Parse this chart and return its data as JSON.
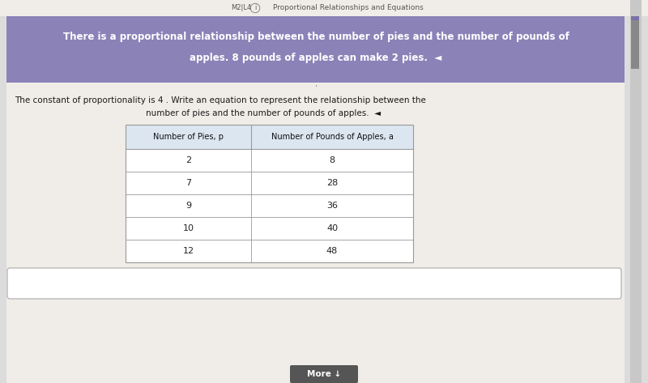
{
  "bg_color": "#dcdcdc",
  "top_bar_color": "#f0ede8",
  "header_bar_color": "#8b82b8",
  "header_text_line1": "There is a proportional relationship between the number of pies and the number of pounds of",
  "header_text_line2": "apples. 8 pounds of apples can make 2 pies.  ◄︎",
  "header_text_color": "#ffffff",
  "top_label": "M2|L4",
  "top_icon": "i",
  "top_subtitle": "Proportional Relationships and Equations",
  "body_bg_color": "#f0ede8",
  "body_text_line1": "The constant of proportionality is 4 . Write an equation to represent the relationship between the",
  "body_text_line2": "number of pies and the number of pounds of apples.  ◄︎",
  "body_text_color": "#1a1a1a",
  "table_col1_header": "Number of Pies, p",
  "table_col2_header": "Number of Pounds of Apples, a",
  "table_data": [
    [
      2,
      8
    ],
    [
      7,
      28
    ],
    [
      9,
      36
    ],
    [
      10,
      40
    ],
    [
      12,
      48
    ]
  ],
  "table_header_bg": "#dce6f1",
  "table_row_bg": "#ffffff",
  "table_border_color": "#999999",
  "answer_box_color": "#ffffff",
  "answer_box_border": "#aaaaaa",
  "more_button_color": "#555555",
  "more_button_text": "More ↓",
  "more_button_text_color": "#ffffff",
  "scrollbar_track_color": "#c8c8c8",
  "scrollbar_thumb_color": "#888888",
  "scrollbar_accent": "#7b70a8"
}
